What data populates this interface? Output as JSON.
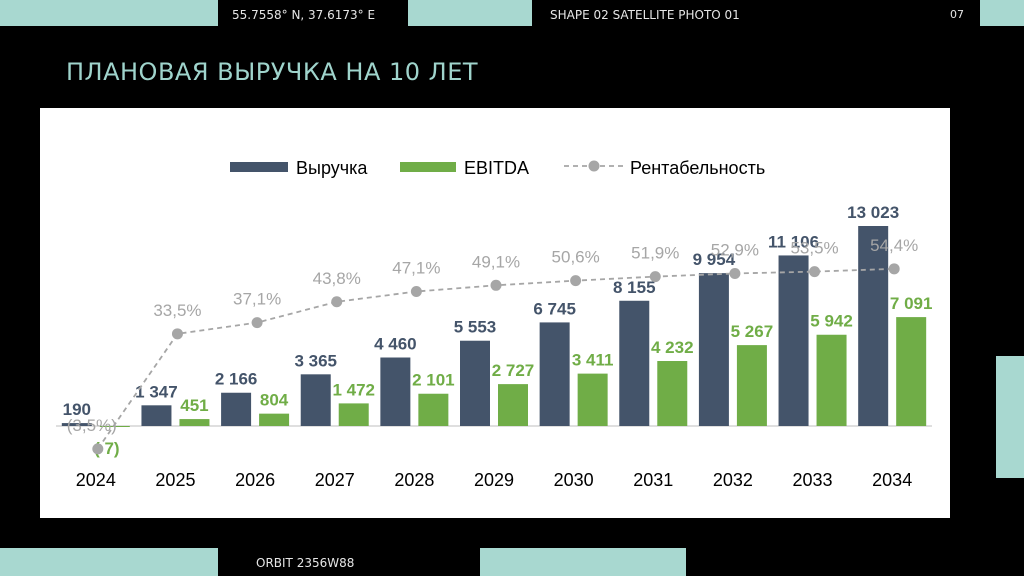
{
  "header": {
    "coords": "55.7558° N, 37.6173° E",
    "shape": "SHAPE 02 SATELLITE PHOTO 01",
    "page_number": "07"
  },
  "title": "ПЛАНОВАЯ ВЫРУЧКА НА 10 ЛЕТ",
  "footer": {
    "orbit": "ORBIT 2356W88"
  },
  "colors": {
    "revenue": "#44546a",
    "ebitda": "#70ad47",
    "margin": "#a6a6a6",
    "accent": "#a8d8d0"
  },
  "chart_data": {
    "type": "bar",
    "title": "",
    "xlabel": "",
    "ylabel": "",
    "ylim": [
      -700,
      14000
    ],
    "categories": [
      "2024",
      "2025",
      "2026",
      "2027",
      "2028",
      "2029",
      "2030",
      "2031",
      "2032",
      "2033",
      "2034"
    ],
    "series": [
      {
        "name": "Выручка",
        "kind": "bar",
        "values": [
          190,
          1347,
          2166,
          3365,
          4460,
          5553,
          6745,
          8155,
          9954,
          11106,
          13023
        ],
        "labels": [
          "190",
          "1 347",
          "2 166",
          "3 365",
          "4 460",
          "5 553",
          "6 745",
          "8 155",
          "9 954",
          "11 106",
          "13 023"
        ]
      },
      {
        "name": "EBITDA",
        "kind": "bar",
        "values": [
          -7,
          451,
          804,
          1472,
          2101,
          2727,
          3411,
          4232,
          5267,
          5942,
          7091
        ],
        "labels": [
          "( 7)",
          "451",
          "804",
          "1 472",
          "2 101",
          "2 727",
          "3 411",
          "4 232",
          "5 267",
          "5 942",
          "7 091"
        ]
      },
      {
        "name": "Рентабельность",
        "kind": "line",
        "values": [
          -3.5,
          33.5,
          37.1,
          43.8,
          47.1,
          49.1,
          50.6,
          51.9,
          52.9,
          53.5,
          54.4
        ],
        "labels": [
          "(3,5%)",
          "33,5%",
          "37,1%",
          "43,8%",
          "47,1%",
          "49,1%",
          "50,6%",
          "51,9%",
          "52,9%",
          "53,5%",
          "54,4%"
        ]
      }
    ],
    "legend": [
      "Выручка",
      "EBITDA",
      "Рентабельность"
    ],
    "legend_position": "top-center",
    "grid": false
  }
}
